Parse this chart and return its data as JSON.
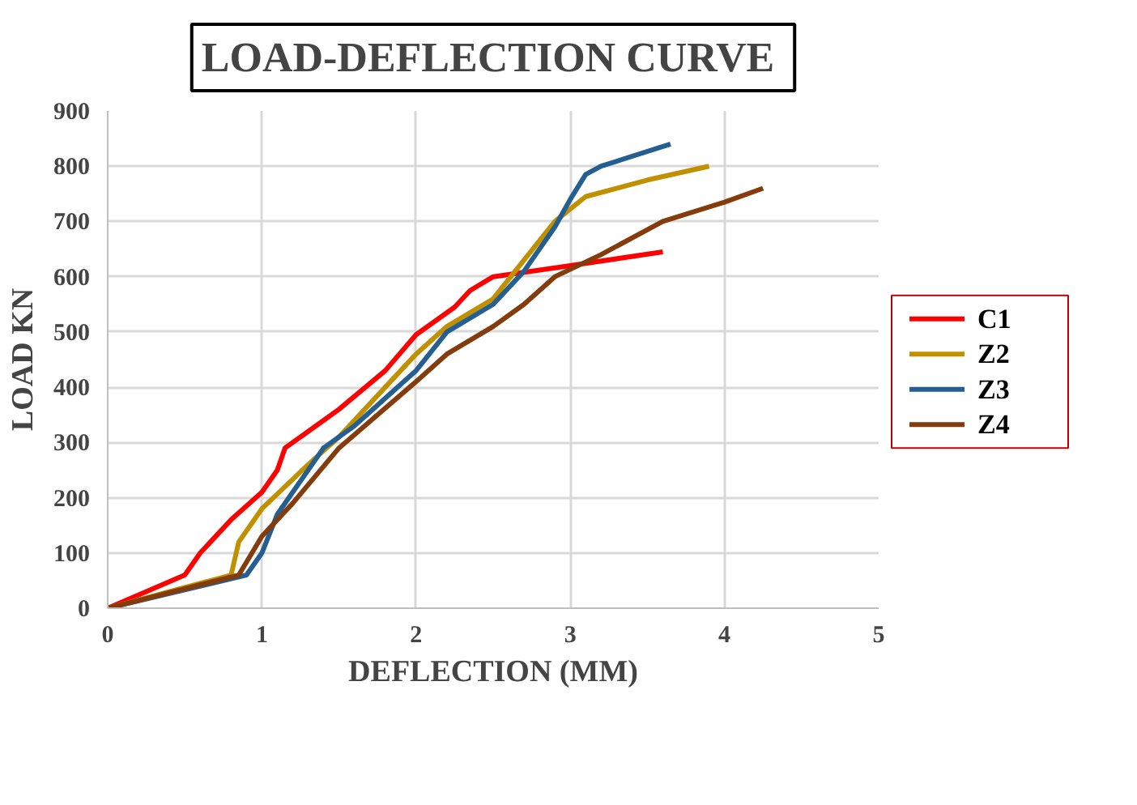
{
  "chart_data": {
    "type": "line",
    "title": "LOAD-DEFLECTION  CURVE",
    "xlabel": "DEFLECTION (MM)",
    "ylabel": "LOAD KN",
    "xlim": [
      0,
      5
    ],
    "xticks": [
      0,
      1,
      2,
      3,
      4,
      5
    ],
    "ylim": [
      0,
      900
    ],
    "yticks": [
      0,
      100,
      200,
      300,
      400,
      500,
      600,
      700,
      800,
      900
    ],
    "grid": true,
    "legend": "right",
    "line_style": "solid",
    "series": [
      {
        "name": "C1",
        "color": "#ff0000",
        "x": [
          0,
          0.5,
          0.6,
          0.8,
          1.0,
          1.1,
          1.15,
          1.3,
          1.5,
          1.8,
          2.0,
          2.25,
          2.35,
          2.5,
          3.0,
          3.6
        ],
        "values": [
          0,
          60,
          100,
          160,
          210,
          250,
          290,
          320,
          360,
          430,
          495,
          545,
          575,
          600,
          620,
          645
        ]
      },
      {
        "name": "Z2",
        "color": "#c09000",
        "x": [
          0,
          0.8,
          0.85,
          1.0,
          1.3,
          1.5,
          2.0,
          2.2,
          2.5,
          2.7,
          2.9,
          3.1,
          3.5,
          3.9
        ],
        "values": [
          0,
          60,
          120,
          180,
          260,
          310,
          460,
          510,
          560,
          630,
          700,
          745,
          775,
          800
        ]
      },
      {
        "name": "Z3",
        "color": "#255e91",
        "x": [
          0,
          0.9,
          1.0,
          1.1,
          1.4,
          1.6,
          2.0,
          2.2,
          2.5,
          2.7,
          2.9,
          3.0,
          3.1,
          3.2,
          3.65
        ],
        "values": [
          0,
          60,
          100,
          170,
          290,
          330,
          430,
          500,
          550,
          610,
          690,
          740,
          785,
          800,
          840
        ]
      },
      {
        "name": "Z4",
        "color": "#843c0c",
        "x": [
          0,
          0.85,
          1.0,
          1.2,
          1.5,
          2.0,
          2.2,
          2.5,
          2.7,
          2.9,
          3.2,
          3.6,
          4.0,
          4.25
        ],
        "values": [
          0,
          60,
          130,
          190,
          290,
          410,
          460,
          510,
          550,
          600,
          640,
          700,
          735,
          760
        ]
      }
    ]
  }
}
